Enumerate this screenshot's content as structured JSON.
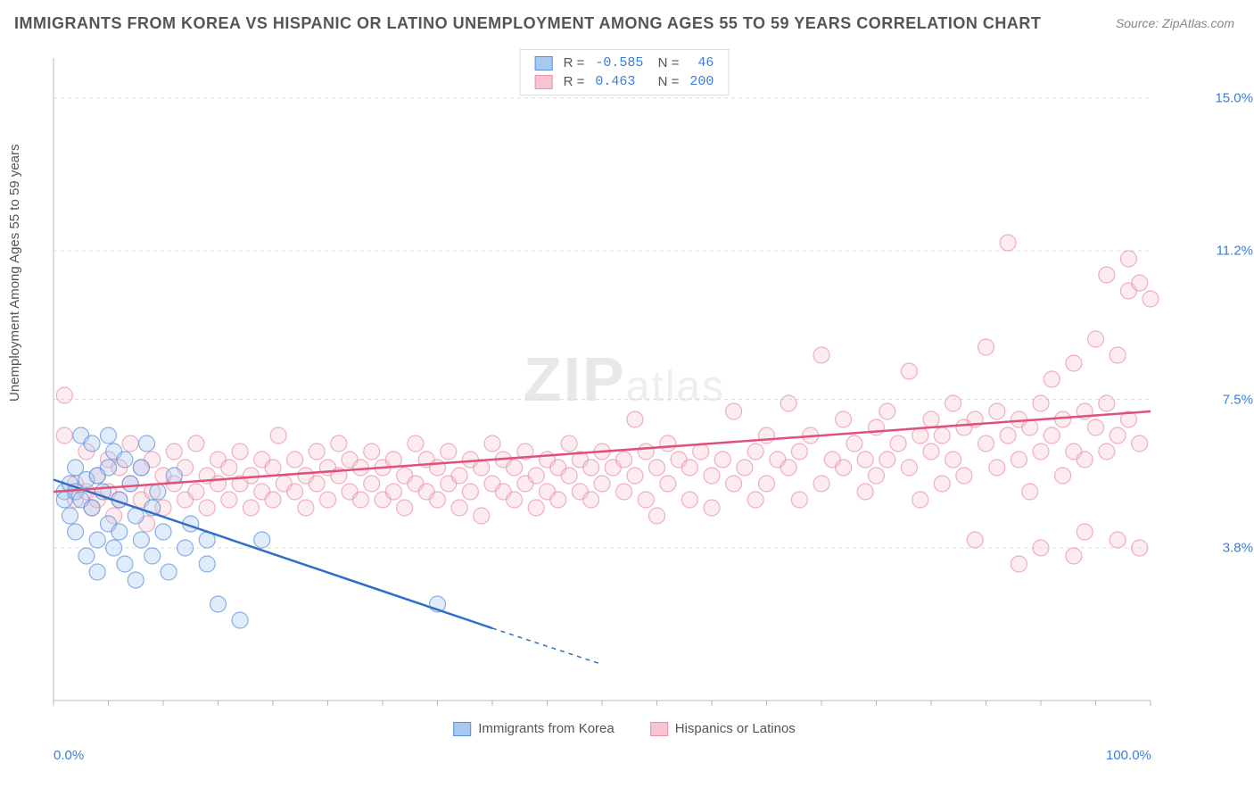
{
  "title": "IMMIGRANTS FROM KOREA VS HISPANIC OR LATINO UNEMPLOYMENT AMONG AGES 55 TO 59 YEARS CORRELATION CHART",
  "source": "Source: ZipAtlas.com",
  "ylabel": "Unemployment Among Ages 55 to 59 years",
  "watermark_a": "ZIP",
  "watermark_b": "atlas",
  "chart": {
    "type": "scatter",
    "xlim": [
      0,
      100
    ],
    "ylim": [
      0,
      16
    ],
    "xticks": [
      {
        "v": 0,
        "label": "0.0%"
      },
      {
        "v": 100,
        "label": "100.0%"
      }
    ],
    "yticks": [
      {
        "v": 3.8,
        "label": "3.8%"
      },
      {
        "v": 7.5,
        "label": "7.5%"
      },
      {
        "v": 11.2,
        "label": "11.2%"
      },
      {
        "v": 15.0,
        "label": "15.0%"
      }
    ],
    "grid_color": "#dddddd",
    "background_color": "#ffffff",
    "marker_radius": 9,
    "marker_opacity": 0.35,
    "line_width": 2.5,
    "series": [
      {
        "name": "Immigrants from Korea",
        "color_fill": "#a8c8f0",
        "color_stroke": "#5a8fd8",
        "line_color": "#2f6fc8",
        "R": "-0.585",
        "N": "46",
        "trend": {
          "x1": 0,
          "y1": 5.5,
          "x2": 40,
          "y2": 1.8,
          "dash_to_x": 50,
          "dash_to_y": 0.9
        },
        "points": [
          [
            1,
            5.2
          ],
          [
            1,
            5.0
          ],
          [
            1.5,
            5.4
          ],
          [
            1.5,
            4.6
          ],
          [
            2,
            5.8
          ],
          [
            2,
            5.2
          ],
          [
            2,
            4.2
          ],
          [
            2.5,
            6.6
          ],
          [
            2.5,
            5.0
          ],
          [
            3,
            5.5
          ],
          [
            3,
            3.6
          ],
          [
            3.5,
            6.4
          ],
          [
            3.5,
            4.8
          ],
          [
            4,
            5.6
          ],
          [
            4,
            4.0
          ],
          [
            4,
            3.2
          ],
          [
            4.5,
            5.2
          ],
          [
            5,
            6.6
          ],
          [
            5,
            5.8
          ],
          [
            5,
            4.4
          ],
          [
            5.5,
            6.2
          ],
          [
            5.5,
            3.8
          ],
          [
            6,
            5.0
          ],
          [
            6,
            4.2
          ],
          [
            6.5,
            6.0
          ],
          [
            6.5,
            3.4
          ],
          [
            7,
            5.4
          ],
          [
            7.5,
            4.6
          ],
          [
            7.5,
            3.0
          ],
          [
            8,
            5.8
          ],
          [
            8,
            4.0
          ],
          [
            8.5,
            6.4
          ],
          [
            9,
            4.8
          ],
          [
            9,
            3.6
          ],
          [
            9.5,
            5.2
          ],
          [
            10,
            4.2
          ],
          [
            10.5,
            3.2
          ],
          [
            11,
            5.6
          ],
          [
            12,
            3.8
          ],
          [
            12.5,
            4.4
          ],
          [
            14,
            4.0
          ],
          [
            14,
            3.4
          ],
          [
            15,
            2.4
          ],
          [
            17,
            2.0
          ],
          [
            19,
            4.0
          ],
          [
            35,
            2.4
          ]
        ]
      },
      {
        "name": "Hispanics or Latinos",
        "color_fill": "#f7c5d0",
        "color_stroke": "#e88fa8",
        "line_color": "#e05078",
        "R": "0.463",
        "N": "200",
        "trend": {
          "x1": 0,
          "y1": 5.2,
          "x2": 100,
          "y2": 7.2
        },
        "points": [
          [
            1,
            7.6
          ],
          [
            1,
            6.6
          ],
          [
            2,
            5.4
          ],
          [
            2,
            5.0
          ],
          [
            3,
            6.2
          ],
          [
            3,
            5.2
          ],
          [
            3.5,
            4.8
          ],
          [
            4,
            5.6
          ],
          [
            4,
            5.0
          ],
          [
            5,
            6.0
          ],
          [
            5,
            5.2
          ],
          [
            5.5,
            4.6
          ],
          [
            6,
            5.8
          ],
          [
            6,
            5.0
          ],
          [
            7,
            6.4
          ],
          [
            7,
            5.4
          ],
          [
            8,
            5.8
          ],
          [
            8,
            5.0
          ],
          [
            8.5,
            4.4
          ],
          [
            9,
            6.0
          ],
          [
            9,
            5.2
          ],
          [
            10,
            5.6
          ],
          [
            10,
            4.8
          ],
          [
            11,
            6.2
          ],
          [
            11,
            5.4
          ],
          [
            12,
            5.8
          ],
          [
            12,
            5.0
          ],
          [
            13,
            6.4
          ],
          [
            13,
            5.2
          ],
          [
            14,
            5.6
          ],
          [
            14,
            4.8
          ],
          [
            15,
            6.0
          ],
          [
            15,
            5.4
          ],
          [
            16,
            5.8
          ],
          [
            16,
            5.0
          ],
          [
            17,
            6.2
          ],
          [
            17,
            5.4
          ],
          [
            18,
            5.6
          ],
          [
            18,
            4.8
          ],
          [
            19,
            6.0
          ],
          [
            19,
            5.2
          ],
          [
            20,
            5.8
          ],
          [
            20,
            5.0
          ],
          [
            20.5,
            6.6
          ],
          [
            21,
            5.4
          ],
          [
            22,
            6.0
          ],
          [
            22,
            5.2
          ],
          [
            23,
            5.6
          ],
          [
            23,
            4.8
          ],
          [
            24,
            6.2
          ],
          [
            24,
            5.4
          ],
          [
            25,
            5.8
          ],
          [
            25,
            5.0
          ],
          [
            26,
            6.4
          ],
          [
            26,
            5.6
          ],
          [
            27,
            6.0
          ],
          [
            27,
            5.2
          ],
          [
            28,
            5.8
          ],
          [
            28,
            5.0
          ],
          [
            29,
            6.2
          ],
          [
            29,
            5.4
          ],
          [
            30,
            5.8
          ],
          [
            30,
            5.0
          ],
          [
            31,
            6.0
          ],
          [
            31,
            5.2
          ],
          [
            32,
            5.6
          ],
          [
            32,
            4.8
          ],
          [
            33,
            6.4
          ],
          [
            33,
            5.4
          ],
          [
            34,
            6.0
          ],
          [
            34,
            5.2
          ],
          [
            35,
            5.8
          ],
          [
            35,
            5.0
          ],
          [
            36,
            6.2
          ],
          [
            36,
            5.4
          ],
          [
            37,
            5.6
          ],
          [
            37,
            4.8
          ],
          [
            38,
            6.0
          ],
          [
            38,
            5.2
          ],
          [
            39,
            5.8
          ],
          [
            39,
            4.6
          ],
          [
            40,
            6.4
          ],
          [
            40,
            5.4
          ],
          [
            41,
            6.0
          ],
          [
            41,
            5.2
          ],
          [
            42,
            5.8
          ],
          [
            42,
            5.0
          ],
          [
            43,
            6.2
          ],
          [
            43,
            5.4
          ],
          [
            44,
            5.6
          ],
          [
            44,
            4.8
          ],
          [
            45,
            6.0
          ],
          [
            45,
            5.2
          ],
          [
            46,
            5.8
          ],
          [
            46,
            5.0
          ],
          [
            47,
            6.4
          ],
          [
            47,
            5.6
          ],
          [
            48,
            6.0
          ],
          [
            48,
            5.2
          ],
          [
            49,
            5.8
          ],
          [
            49,
            5.0
          ],
          [
            50,
            6.2
          ],
          [
            50,
            5.4
          ],
          [
            51,
            5.8
          ],
          [
            52,
            6.0
          ],
          [
            52,
            5.2
          ],
          [
            53,
            7.0
          ],
          [
            53,
            5.6
          ],
          [
            54,
            6.2
          ],
          [
            54,
            5.0
          ],
          [
            55,
            5.8
          ],
          [
            55,
            4.6
          ],
          [
            56,
            6.4
          ],
          [
            56,
            5.4
          ],
          [
            57,
            6.0
          ],
          [
            58,
            5.8
          ],
          [
            58,
            5.0
          ],
          [
            59,
            6.2
          ],
          [
            60,
            5.6
          ],
          [
            60,
            4.8
          ],
          [
            61,
            6.0
          ],
          [
            62,
            5.4
          ],
          [
            62,
            7.2
          ],
          [
            63,
            5.8
          ],
          [
            64,
            6.2
          ],
          [
            64,
            5.0
          ],
          [
            65,
            6.6
          ],
          [
            65,
            5.4
          ],
          [
            66,
            6.0
          ],
          [
            67,
            7.4
          ],
          [
            67,
            5.8
          ],
          [
            68,
            6.2
          ],
          [
            68,
            5.0
          ],
          [
            69,
            6.6
          ],
          [
            70,
            5.4
          ],
          [
            70,
            8.6
          ],
          [
            71,
            6.0
          ],
          [
            72,
            7.0
          ],
          [
            72,
            5.8
          ],
          [
            73,
            6.4
          ],
          [
            74,
            6.0
          ],
          [
            74,
            5.2
          ],
          [
            75,
            6.8
          ],
          [
            75,
            5.6
          ],
          [
            76,
            7.2
          ],
          [
            76,
            6.0
          ],
          [
            77,
            6.4
          ],
          [
            78,
            8.2
          ],
          [
            78,
            5.8
          ],
          [
            79,
            6.6
          ],
          [
            79,
            5.0
          ],
          [
            80,
            7.0
          ],
          [
            80,
            6.2
          ],
          [
            81,
            6.6
          ],
          [
            81,
            5.4
          ],
          [
            82,
            7.4
          ],
          [
            82,
            6.0
          ],
          [
            83,
            6.8
          ],
          [
            83,
            5.6
          ],
          [
            84,
            7.0
          ],
          [
            84,
            4.0
          ],
          [
            85,
            8.8
          ],
          [
            85,
            6.4
          ],
          [
            86,
            7.2
          ],
          [
            86,
            5.8
          ],
          [
            87,
            6.6
          ],
          [
            87,
            11.4
          ],
          [
            88,
            7.0
          ],
          [
            88,
            6.0
          ],
          [
            88,
            3.4
          ],
          [
            89,
            6.8
          ],
          [
            89,
            5.2
          ],
          [
            90,
            7.4
          ],
          [
            90,
            6.2
          ],
          [
            90,
            3.8
          ],
          [
            91,
            8.0
          ],
          [
            91,
            6.6
          ],
          [
            92,
            7.0
          ],
          [
            92,
            5.6
          ],
          [
            93,
            8.4
          ],
          [
            93,
            6.2
          ],
          [
            93,
            3.6
          ],
          [
            94,
            7.2
          ],
          [
            94,
            6.0
          ],
          [
            94,
            4.2
          ],
          [
            95,
            6.8
          ],
          [
            95,
            9.0
          ],
          [
            96,
            7.4
          ],
          [
            96,
            6.2
          ],
          [
            96,
            10.6
          ],
          [
            97,
            8.6
          ],
          [
            97,
            6.6
          ],
          [
            97,
            4.0
          ],
          [
            98,
            7.0
          ],
          [
            98,
            11.0
          ],
          [
            98,
            10.2
          ],
          [
            99,
            6.4
          ],
          [
            99,
            10.4
          ],
          [
            99,
            3.8
          ],
          [
            100,
            10.0
          ]
        ]
      }
    ]
  },
  "legend_bottom": [
    {
      "label": "Immigrants from Korea",
      "fill": "#a8c8f0",
      "stroke": "#5a8fd8"
    },
    {
      "label": "Hispanics or Latinos",
      "fill": "#f7c5d0",
      "stroke": "#e88fa8"
    }
  ]
}
